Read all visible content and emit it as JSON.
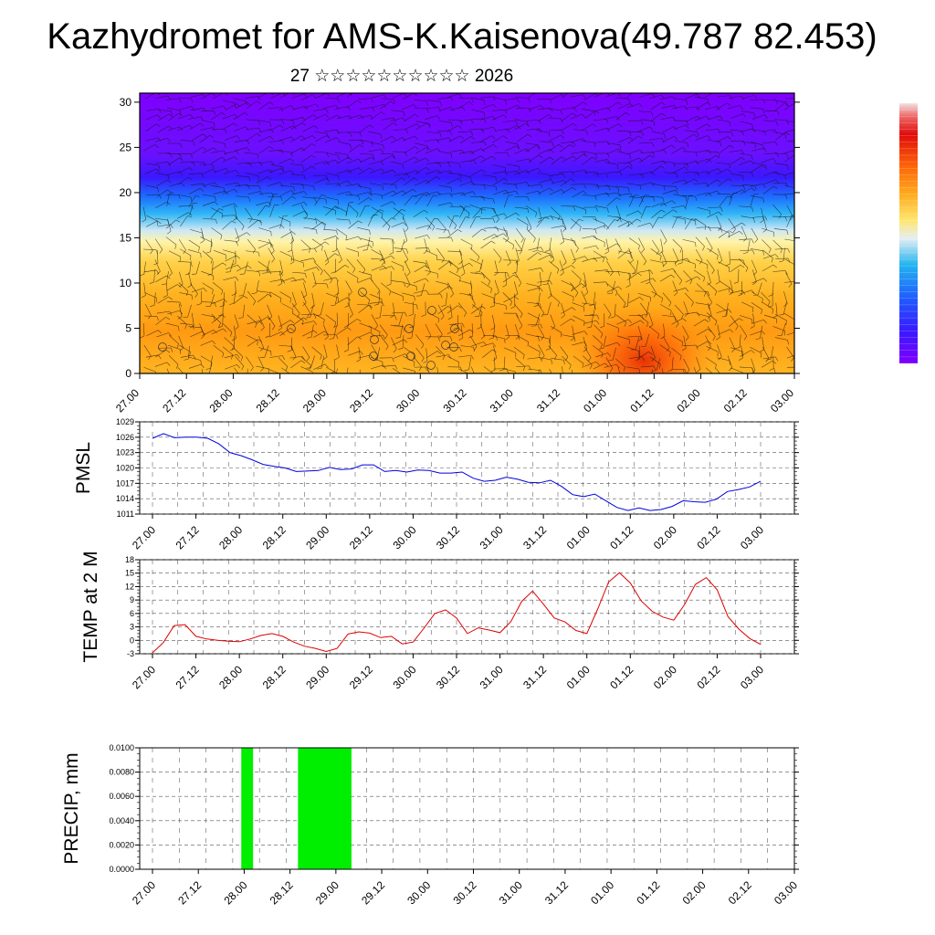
{
  "title": "Kazhydromet for AMS-K.Kaisenova(49.787 82.453)",
  "subtitle": "27 ☆☆☆☆☆☆☆☆☆☆ 2026",
  "colors": {
    "pmsl_line": "#0000dd",
    "temp_line": "#dd0000",
    "precip_bar": "#00ee00",
    "frame": "#000000",
    "grid": "#555555"
  },
  "chart_data": [
    {
      "type": "heatmap",
      "name": "vertical-section",
      "title": "",
      "x_ticks": [
        "27.00",
        "27.12",
        "28.00",
        "28.12",
        "29.00",
        "29.12",
        "30.00",
        "30.12",
        "31.00",
        "31.12",
        "01.00",
        "01.12",
        "02.00",
        "02.12",
        "03.00"
      ],
      "y_ticks": [
        "0",
        "5",
        "10",
        "15",
        "20",
        "25",
        "30"
      ],
      "ylim": [
        0,
        31
      ],
      "colormap": [
        "#7f00ff",
        "#3a18ff",
        "#1d6dff",
        "#2fb5f5",
        "#c8e6f5",
        "#fff3a8",
        "#ffd24a",
        "#ffab1f",
        "#ff8c0a",
        "#ff5a05",
        "#e60d0d"
      ],
      "legend": "right colorbar, no labels"
    },
    {
      "type": "line",
      "name": "pmsl",
      "ylabel": "PMSL",
      "ylim": [
        1011,
        1029
      ],
      "y_ticks": [
        "1011",
        "1014",
        "1017",
        "1020",
        "1023",
        "1026",
        "1029"
      ],
      "x_ticks": [
        "27.00",
        "27.12",
        "28.00",
        "28.12",
        "29.00",
        "29.12",
        "30.00",
        "30.12",
        "31.00",
        "31.12",
        "01.00",
        "01.12",
        "02.00",
        "02.12",
        "03.00"
      ],
      "series": [
        {
          "name": "PMSL",
          "values": [
            1025.8,
            1026.7,
            1025.9,
            1026.0,
            1026.0,
            1025.8,
            1024.7,
            1023.0,
            1022.4,
            1021.6,
            1020.7,
            1020.3,
            1020.0,
            1019.3,
            1019.4,
            1019.5,
            1020.1,
            1019.7,
            1019.8,
            1020.6,
            1020.6,
            1019.3,
            1019.5,
            1019.2,
            1019.6,
            1019.5,
            1019.0,
            1019.0,
            1019.2,
            1018.0,
            1017.4,
            1017.6,
            1018.2,
            1017.8,
            1017.2,
            1017.1,
            1017.6,
            1016.4,
            1014.8,
            1014.4,
            1014.9,
            1013.6,
            1012.3,
            1011.7,
            1012.2,
            1011.7,
            1011.9,
            1012.5,
            1013.6,
            1013.4,
            1013.3,
            1013.9,
            1015.4,
            1015.8,
            1016.3,
            1017.4
          ]
        }
      ],
      "x_range_days": [
        0,
        6
      ]
    },
    {
      "type": "line",
      "name": "temperature",
      "ylabel": "TEMP at 2 M",
      "ylim": [
        -3,
        18
      ],
      "y_ticks": [
        "-3",
        "0",
        "3",
        "6",
        "9",
        "12",
        "15",
        "18"
      ],
      "x_ticks": [
        "27.00",
        "27.12",
        "28.00",
        "28.12",
        "29.00",
        "29.12",
        "30.00",
        "30.12",
        "31.00",
        "31.12",
        "01.00",
        "01.12",
        "02.00",
        "02.12",
        "03.00"
      ],
      "series": [
        {
          "name": "T2M",
          "values": [
            -2.8,
            -0.5,
            3.3,
            3.5,
            0.9,
            0.3,
            0.0,
            -0.2,
            -0.3,
            0.3,
            1.1,
            1.5,
            0.9,
            -0.4,
            -1.3,
            -1.8,
            -2.5,
            -1.8,
            1.4,
            1.9,
            1.6,
            0.6,
            0.9,
            -0.8,
            -0.4,
            2.7,
            6.0,
            6.8,
            5.0,
            1.5,
            2.8,
            2.3,
            1.7,
            4.2,
            8.7,
            11.0,
            8.1,
            5.0,
            4.1,
            2.2,
            1.5,
            7.0,
            13.0,
            15.1,
            12.8,
            8.8,
            6.5,
            5.2,
            4.5,
            8.0,
            12.5,
            14.0,
            11.3,
            5.3,
            2.5,
            0.4,
            -0.9
          ]
        }
      ],
      "x_range_days": [
        0,
        6
      ]
    },
    {
      "type": "bar",
      "name": "precipitation",
      "ylabel": "PRECIP, mm",
      "ylim": [
        0,
        0.01
      ],
      "y_ticks": [
        "0.0000",
        "0.0020",
        "0.0040",
        "0.0060",
        "0.0080",
        "0.0100"
      ],
      "x_ticks": [
        "27.00",
        "27.12",
        "28.00",
        "28.12",
        "29.00",
        "29.12",
        "30.00",
        "30.12",
        "31.00",
        "31.12",
        "01.00",
        "01.12",
        "02.00",
        "02.12",
        "03.00"
      ],
      "x_range_days": [
        0,
        6
      ],
      "bars": [
        {
          "start_day": 0.83,
          "end_day": 0.94,
          "value": 0.01
        },
        {
          "start_day": 1.36,
          "end_day": 1.86,
          "value": 0.01
        }
      ]
    }
  ]
}
